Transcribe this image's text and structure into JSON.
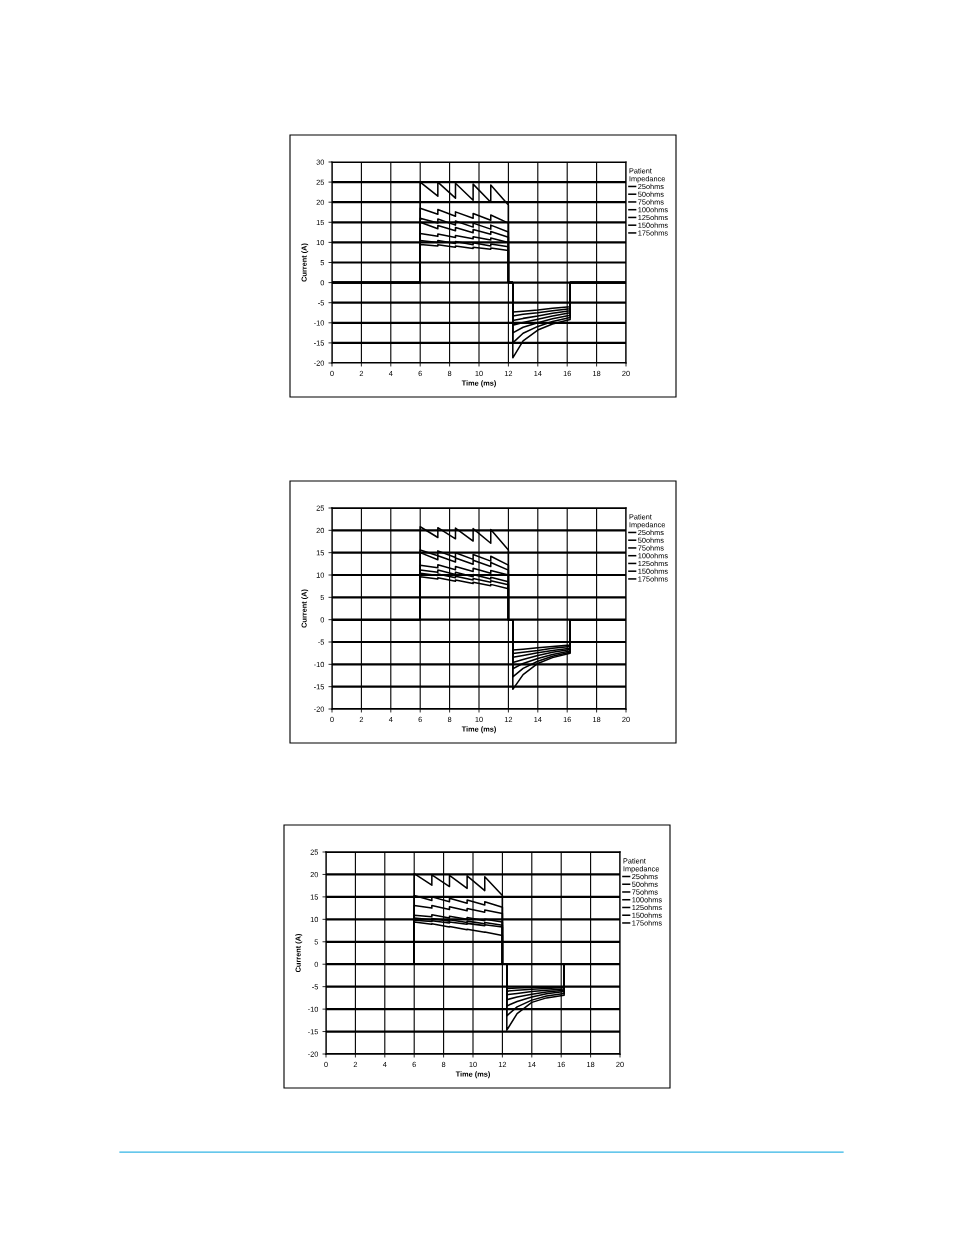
{
  "chart_data": [
    {
      "type": "line",
      "xlabel": "Time (ms)",
      "ylabel": "Current (A)",
      "legend_title": "Patient\nImpedance",
      "legend": "top right",
      "grid": true,
      "x": [
        0,
        6,
        6,
        7.2,
        7.2,
        8.4,
        8.4,
        9.6,
        9.6,
        10.8,
        10.8,
        12,
        12,
        12.3,
        12.3,
        13,
        14,
        15,
        16.2,
        16.2,
        20
      ],
      "xlim": [
        0,
        20
      ],
      "xticks": [
        0,
        2,
        4,
        6,
        8,
        10,
        12,
        14,
        16,
        18,
        20
      ],
      "ylim": [
        -20,
        30
      ],
      "yticks": [
        -20,
        -15,
        -10,
        -5,
        0,
        5,
        10,
        15,
        20,
        25,
        30
      ],
      "series": [
        {
          "name": "25ohms",
          "color": "#000000",
          "values": [
            0,
            0,
            25,
            21.5,
            25,
            21,
            24.7,
            20.5,
            24.5,
            20,
            24.3,
            19.3,
            0,
            0,
            -18.7,
            -14.5,
            -11.8,
            -10.3,
            -9.2,
            0,
            0
          ]
        },
        {
          "name": "50ohms",
          "color": "#000000",
          "values": [
            0,
            0,
            18.5,
            17,
            18.2,
            16.5,
            17.6,
            16,
            17.2,
            15.5,
            16.8,
            14.8,
            0,
            0,
            -15,
            -12.6,
            -10.9,
            -9.7,
            -8.7,
            0,
            0
          ]
        },
        {
          "name": "75ohms",
          "color": "#000000",
          "values": [
            0,
            0,
            16,
            14.8,
            15.8,
            14.3,
            15.3,
            13.8,
            14.8,
            13.3,
            14.3,
            12.6,
            0,
            0,
            -12.5,
            -11.1,
            -10,
            -9,
            -8.1,
            0,
            0
          ]
        },
        {
          "name": "100ohms",
          "color": "#000000",
          "values": [
            0,
            0,
            15,
            13.4,
            14.2,
            12.9,
            13.7,
            12.4,
            13.2,
            12,
            12.7,
            11.3,
            0,
            0,
            -10.6,
            -9.9,
            -9.1,
            -8.3,
            -7.5,
            0,
            0
          ]
        },
        {
          "name": "125ohms",
          "color": "#000000",
          "values": [
            0,
            0,
            12.2,
            11.5,
            12.1,
            11.2,
            11.7,
            10.9,
            11.4,
            10.6,
            11.1,
            10,
            0,
            0,
            -9.4,
            -8.9,
            -8.3,
            -7.6,
            -7,
            0,
            0
          ]
        },
        {
          "name": "150ohms",
          "color": "#000000",
          "values": [
            0,
            0,
            10.5,
            10,
            10.5,
            9.7,
            10.2,
            9.4,
            9.9,
            9.1,
            9.6,
            8.9,
            0,
            0,
            -8.3,
            -7.9,
            -7.5,
            -7,
            -6.5,
            0,
            0
          ]
        },
        {
          "name": "175ohms",
          "color": "#000000",
          "values": [
            0,
            0,
            9.5,
            9.1,
            9.4,
            8.8,
            9.1,
            8.5,
            8.8,
            8.3,
            8.6,
            8,
            0,
            0,
            -7.3,
            -7.1,
            -6.8,
            -6.4,
            -6,
            0,
            0
          ]
        }
      ]
    },
    {
      "type": "line",
      "xlabel": "Time (ms)",
      "ylabel": "Current (A)",
      "legend_title": "Patient\nImpedance",
      "legend": "top right",
      "grid": true,
      "x": [
        0,
        6,
        6,
        7.2,
        7.2,
        8.4,
        8.4,
        9.6,
        9.6,
        10.8,
        10.8,
        12,
        12,
        12.3,
        12.3,
        13,
        14,
        15,
        16.2,
        16.2,
        20
      ],
      "xlim": [
        0,
        20
      ],
      "xticks": [
        0,
        2,
        4,
        6,
        8,
        10,
        12,
        14,
        16,
        18,
        20
      ],
      "ylim": [
        -20,
        25
      ],
      "yticks": [
        -20,
        -15,
        -10,
        -5,
        0,
        5,
        10,
        15,
        20,
        25
      ],
      "series": [
        {
          "name": "25ohms",
          "color": "#000000",
          "values": [
            0,
            0,
            20.8,
            18.4,
            20.6,
            18.1,
            20.5,
            17.6,
            20.4,
            17.1,
            20.2,
            15.6,
            0,
            0,
            -15.6,
            -12.3,
            -9.8,
            -8.5,
            -7.5,
            0,
            0
          ]
        },
        {
          "name": "50ohms",
          "color": "#000000",
          "values": [
            0,
            0,
            15.6,
            14.3,
            15.4,
            13.9,
            15,
            13.5,
            14.6,
            13.1,
            14.2,
            12.2,
            0,
            0,
            -12.8,
            -10.9,
            -9.3,
            -8.2,
            -7.3,
            0,
            0
          ]
        },
        {
          "name": "75ohms",
          "color": "#000000",
          "values": [
            0,
            0,
            15,
            13.4,
            14.3,
            12.9,
            13.8,
            12.4,
            13.3,
            11.9,
            12.8,
            11.1,
            0,
            0,
            -11,
            -9.8,
            -8.7,
            -7.8,
            -7,
            0,
            0
          ]
        },
        {
          "name": "100ohms",
          "color": "#000000",
          "values": [
            0,
            0,
            12.2,
            11.6,
            12.3,
            11.2,
            11.9,
            10.8,
            11.5,
            10.4,
            11,
            10,
            0,
            0,
            -9.6,
            -8.9,
            -8,
            -7.3,
            -6.7,
            0,
            0
          ]
        },
        {
          "name": "125ohms",
          "color": "#000000",
          "values": [
            0,
            0,
            11.1,
            10.6,
            11.1,
            10.1,
            10.6,
            9.6,
            10.1,
            9.1,
            9.5,
            8.5,
            0,
            0,
            -8.4,
            -8,
            -7.4,
            -6.9,
            -6.4,
            0,
            0
          ]
        },
        {
          "name": "150ohms",
          "color": "#000000",
          "values": [
            0,
            0,
            10.4,
            9.9,
            10.2,
            9.4,
            9.7,
            8.9,
            9.2,
            8.4,
            8.7,
            7.8,
            0,
            0,
            -7.6,
            -7.3,
            -6.9,
            -6.4,
            -6,
            0,
            0
          ]
        },
        {
          "name": "175ohms",
          "color": "#000000",
          "values": [
            0,
            0,
            9.6,
            9.1,
            9.4,
            8.6,
            8.9,
            8.1,
            8.4,
            7.6,
            7.9,
            6.9,
            0,
            0,
            -6.8,
            -6.6,
            -6.3,
            -6,
            -5.7,
            0,
            0
          ]
        }
      ]
    },
    {
      "type": "line",
      "xlabel": "Time (ms)",
      "ylabel": "Current (A)",
      "legend_title": "Patient\nImpedance",
      "legend": "top right",
      "grid": true,
      "x": [
        0,
        6,
        6,
        7.2,
        7.2,
        8.4,
        8.4,
        9.6,
        9.6,
        10.8,
        10.8,
        12,
        12,
        12.3,
        12.3,
        13,
        14,
        15,
        16.2,
        16.2,
        20
      ],
      "xlim": [
        0,
        20
      ],
      "xticks": [
        0,
        2,
        4,
        6,
        8,
        10,
        12,
        14,
        16,
        18,
        20
      ],
      "ylim": [
        -20,
        25
      ],
      "yticks": [
        -20,
        -15,
        -10,
        -5,
        0,
        5,
        10,
        15,
        20,
        25
      ],
      "series": [
        {
          "name": "25ohms",
          "color": "#000000",
          "values": [
            0,
            0,
            20.2,
            17.6,
            19.9,
            17.3,
            19.8,
            16.9,
            19.7,
            16.4,
            19.5,
            15.3,
            0,
            0,
            -14.7,
            -11,
            -8.5,
            -7.5,
            -6.9,
            0,
            0
          ]
        },
        {
          "name": "50ohms",
          "color": "#000000",
          "values": [
            0,
            0,
            15.3,
            14.2,
            15,
            13.9,
            14.7,
            13.6,
            14.3,
            13.2,
            13.9,
            12.7,
            0,
            0,
            -11.5,
            -9.5,
            -8,
            -7.1,
            -6.5,
            0,
            0
          ]
        },
        {
          "name": "75ohms",
          "color": "#000000",
          "values": [
            0,
            0,
            13.1,
            12.5,
            13.1,
            12.2,
            12.8,
            11.9,
            12.4,
            11.6,
            12.1,
            11.3,
            0,
            0,
            -9.3,
            -8.3,
            -7.3,
            -6.6,
            -6.1,
            0,
            0
          ]
        },
        {
          "name": "100ohms",
          "color": "#000000",
          "values": [
            0,
            0,
            10.9,
            10.6,
            11,
            10.3,
            10.7,
            10,
            10.4,
            9.7,
            10,
            9.4,
            0,
            0,
            -7.9,
            -7.3,
            -6.7,
            -6.2,
            -5.8,
            0,
            0
          ]
        },
        {
          "name": "125ohms",
          "color": "#000000",
          "values": [
            0,
            0,
            10.3,
            9.9,
            10.2,
            9.6,
            9.9,
            9.3,
            9.6,
            9,
            9.3,
            8.7,
            0,
            0,
            -6.8,
            -6.5,
            -6.1,
            -5.8,
            -5.5,
            0,
            0
          ]
        },
        {
          "name": "150ohms",
          "color": "#000000",
          "values": [
            0,
            0,
            9.8,
            9.5,
            9.7,
            9.2,
            9.4,
            8.9,
            9.1,
            8.6,
            8.8,
            8.3,
            0,
            0,
            -6,
            -5.8,
            -5.6,
            -5.4,
            -5.2,
            0,
            0
          ]
        },
        {
          "name": "175ohms",
          "color": "#000000",
          "values": [
            0,
            0,
            9.4,
            8.9,
            9,
            8.3,
            8.4,
            7.7,
            7.8,
            7.1,
            7.2,
            6.4,
            0,
            0,
            -5.4,
            -5.3,
            -5.2,
            -5.1,
            -5,
            0,
            0
          ]
        }
      ]
    }
  ]
}
